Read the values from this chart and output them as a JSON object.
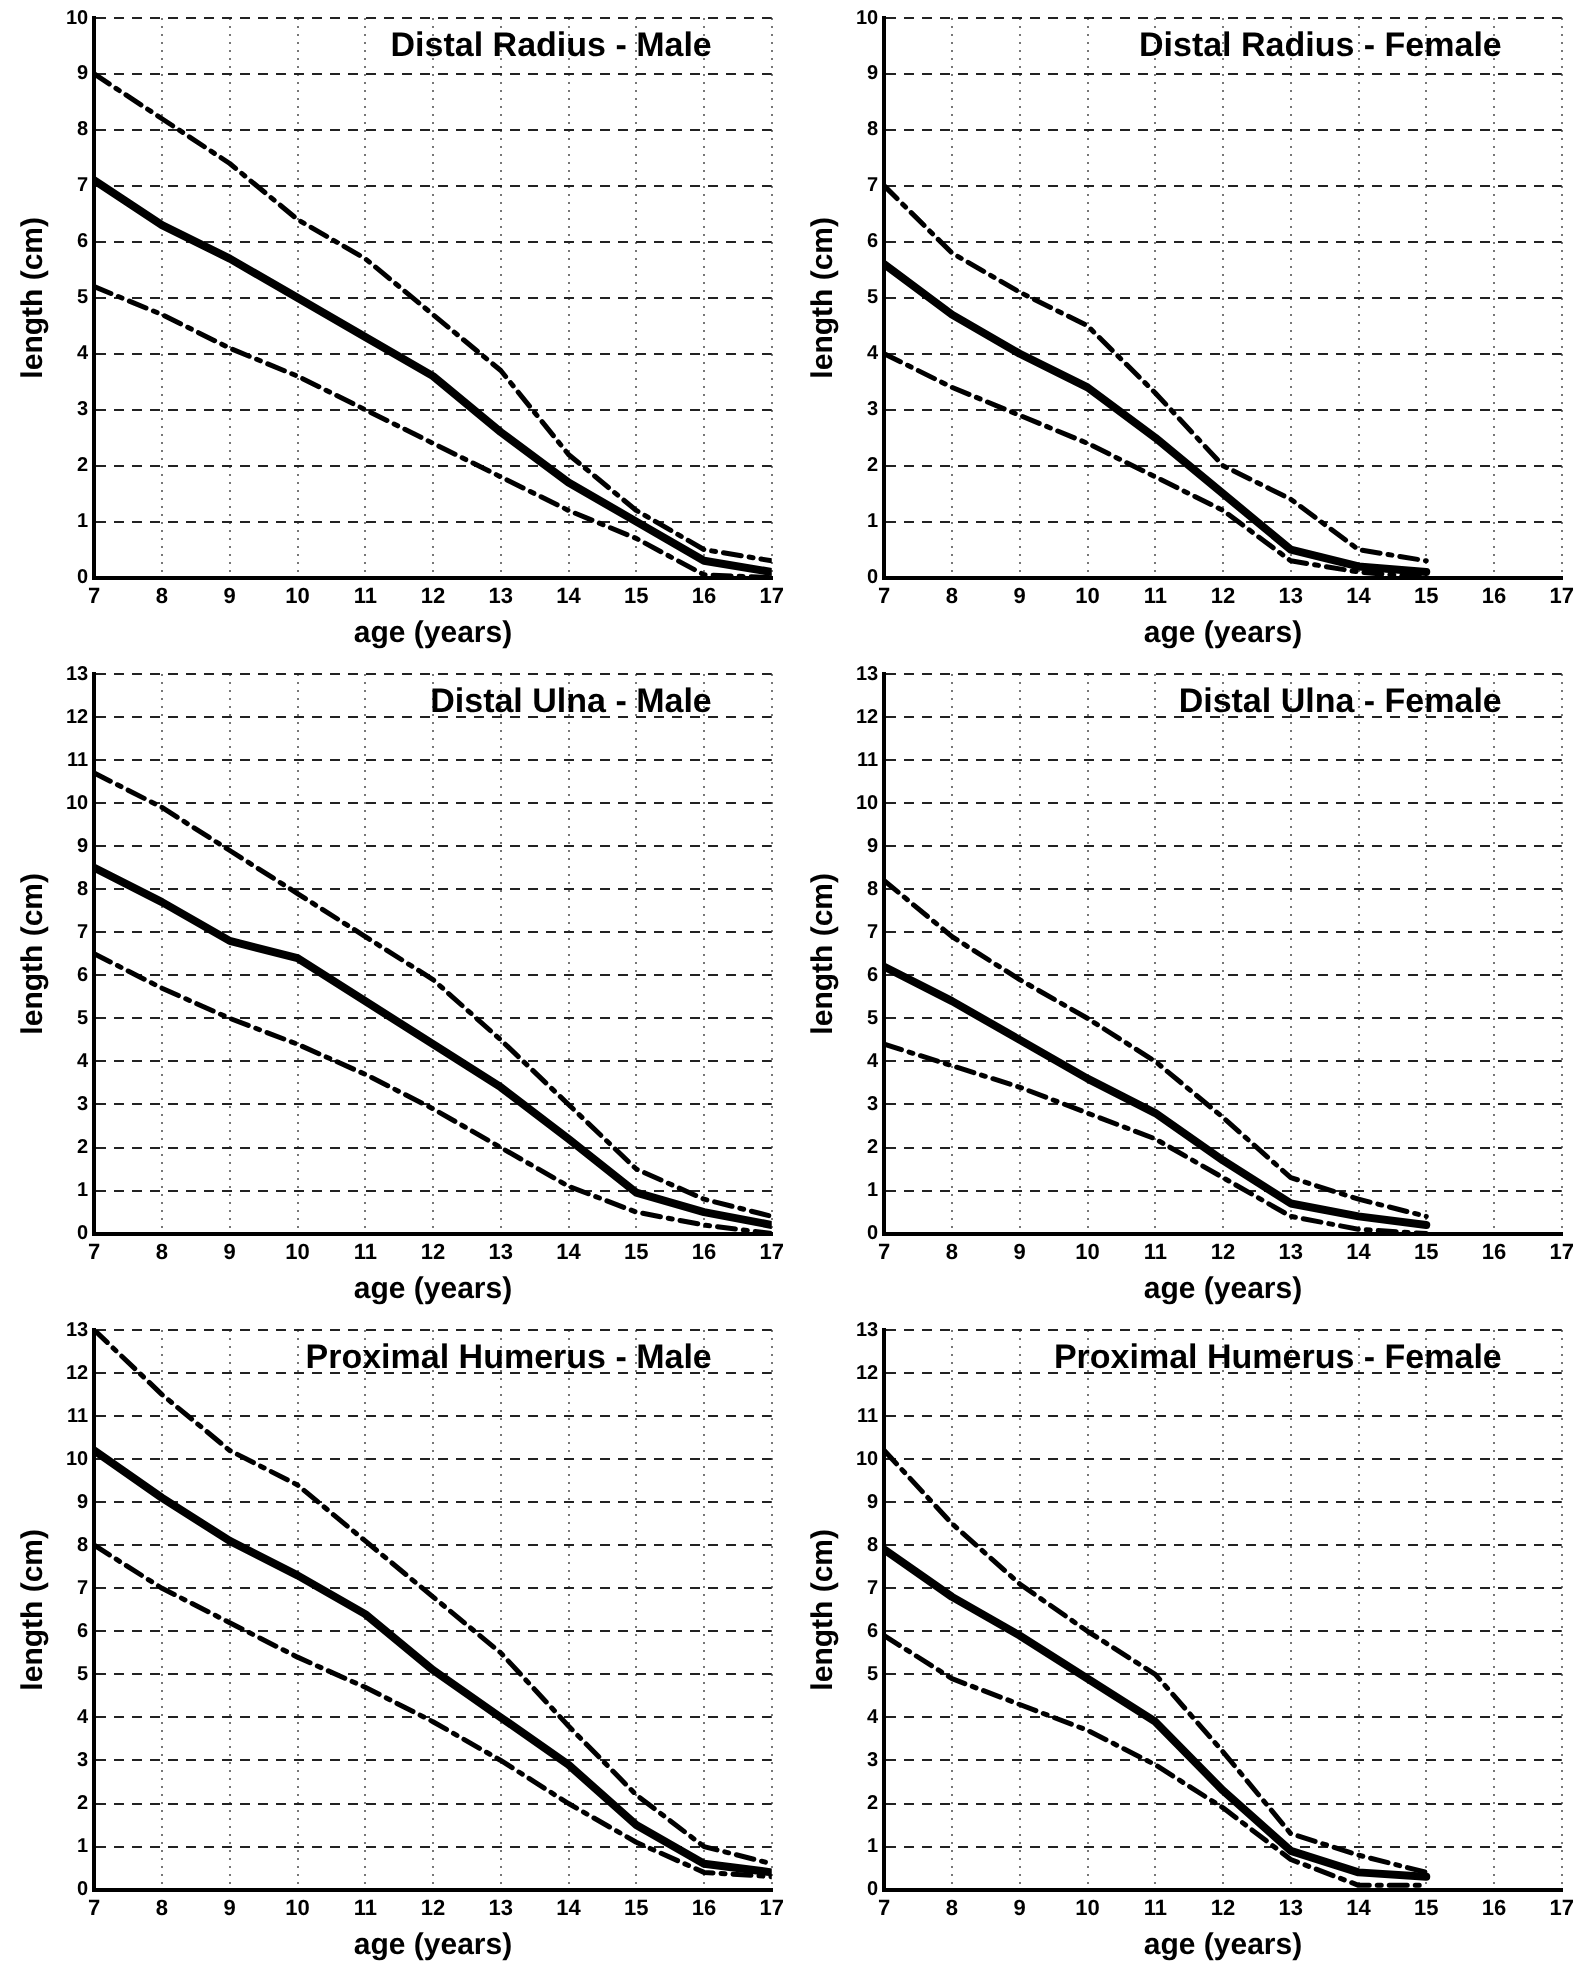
{
  "chart_data": [
    {
      "type": "line",
      "title": "Distal Radius - Male",
      "xlabel": "age (years)",
      "ylabel": "length (cm)",
      "x": [
        7,
        8,
        9,
        10,
        11,
        12,
        13,
        14,
        15,
        16,
        17
      ],
      "xlim": [
        7,
        17
      ],
      "xticks": [
        7,
        8,
        9,
        10,
        11,
        12,
        13,
        14,
        15,
        16,
        17
      ],
      "ylim": [
        0,
        10
      ],
      "yticks": [
        0,
        1,
        2,
        3,
        4,
        5,
        6,
        7,
        8,
        9,
        10
      ],
      "grid": true,
      "series": [
        {
          "color": "#000000",
          "line_style": "dashed",
          "values": [
            9.0,
            8.2,
            7.4,
            6.4,
            5.7,
            4.7,
            3.7,
            2.2,
            1.2,
            0.5,
            0.3
          ]
        },
        {
          "color": "#000000",
          "line_style": "solid",
          "values": [
            7.1,
            6.3,
            5.7,
            5.0,
            4.3,
            3.6,
            2.6,
            1.7,
            1.0,
            0.3,
            0.1
          ]
        },
        {
          "color": "#000000",
          "line_style": "dashed",
          "values": [
            5.2,
            4.7,
            4.1,
            3.6,
            3.0,
            2.4,
            1.8,
            1.2,
            0.7,
            0.05,
            0.0
          ]
        }
      ]
    },
    {
      "type": "line",
      "title": "Distal Radius - Female",
      "xlabel": "age (years)",
      "ylabel": "length (cm)",
      "x": [
        7,
        8,
        9,
        10,
        11,
        12,
        13,
        14,
        15
      ],
      "xlim": [
        7,
        17
      ],
      "xticks": [
        7,
        8,
        9,
        10,
        11,
        12,
        13,
        14,
        15,
        16,
        17
      ],
      "ylim": [
        0,
        10
      ],
      "yticks": [
        0,
        1,
        2,
        3,
        4,
        5,
        6,
        7,
        8,
        9,
        10
      ],
      "grid": true,
      "series": [
        {
          "color": "#000000",
          "line_style": "dashed",
          "values": [
            7.0,
            5.8,
            5.1,
            4.5,
            3.3,
            2.0,
            1.4,
            0.5,
            0.3
          ]
        },
        {
          "color": "#000000",
          "line_style": "solid",
          "values": [
            5.6,
            4.7,
            4.0,
            3.4,
            2.5,
            1.5,
            0.5,
            0.2,
            0.1
          ]
        },
        {
          "color": "#000000",
          "line_style": "dashed",
          "values": [
            4.0,
            3.4,
            2.9,
            2.4,
            1.8,
            1.2,
            0.3,
            0.1,
            0.0
          ]
        }
      ]
    },
    {
      "type": "line",
      "title": "Distal Ulna - Male",
      "xlabel": "age (years)",
      "ylabel": "length (cm)",
      "x": [
        7,
        8,
        9,
        10,
        11,
        12,
        13,
        14,
        15,
        16,
        17
      ],
      "xlim": [
        7,
        17
      ],
      "xticks": [
        7,
        8,
        9,
        10,
        11,
        12,
        13,
        14,
        15,
        16,
        17
      ],
      "ylim": [
        0,
        13
      ],
      "yticks": [
        0,
        1,
        2,
        3,
        4,
        5,
        6,
        7,
        8,
        9,
        10,
        11,
        12,
        13
      ],
      "grid": true,
      "series": [
        {
          "color": "#000000",
          "line_style": "dashed",
          "values": [
            10.7,
            9.9,
            8.9,
            7.9,
            6.9,
            5.9,
            4.5,
            3.0,
            1.5,
            0.8,
            0.4
          ]
        },
        {
          "color": "#000000",
          "line_style": "solid",
          "values": [
            8.5,
            7.7,
            6.8,
            6.4,
            5.4,
            4.4,
            3.4,
            2.2,
            0.95,
            0.5,
            0.2
          ]
        },
        {
          "color": "#000000",
          "line_style": "dashed",
          "values": [
            6.5,
            5.7,
            5.0,
            4.4,
            3.7,
            2.9,
            2.0,
            1.1,
            0.5,
            0.2,
            0.0
          ]
        }
      ]
    },
    {
      "type": "line",
      "title": "Distal Ulna - Female",
      "xlabel": "age (years)",
      "ylabel": "length (cm)",
      "x": [
        7,
        8,
        9,
        10,
        11,
        12,
        13,
        14,
        15
      ],
      "xlim": [
        7,
        17
      ],
      "xticks": [
        7,
        8,
        9,
        10,
        11,
        12,
        13,
        14,
        15,
        16,
        17
      ],
      "ylim": [
        0,
        13
      ],
      "yticks": [
        0,
        1,
        2,
        3,
        4,
        5,
        6,
        7,
        8,
        9,
        10,
        11,
        12,
        13
      ],
      "grid": true,
      "series": [
        {
          "color": "#000000",
          "line_style": "dashed",
          "values": [
            8.2,
            6.9,
            5.9,
            5.0,
            4.0,
            2.7,
            1.3,
            0.8,
            0.4
          ]
        },
        {
          "color": "#000000",
          "line_style": "solid",
          "values": [
            6.2,
            5.4,
            4.5,
            3.6,
            2.8,
            1.7,
            0.7,
            0.4,
            0.2
          ]
        },
        {
          "color": "#000000",
          "line_style": "dashed",
          "values": [
            4.4,
            3.9,
            3.4,
            2.8,
            2.2,
            1.3,
            0.4,
            0.1,
            0.0
          ]
        }
      ]
    },
    {
      "type": "line",
      "title": "Proximal Humerus - Male",
      "xlabel": "age (years)",
      "ylabel": "length (cm)",
      "x": [
        7,
        8,
        9,
        10,
        11,
        12,
        13,
        14,
        15,
        16,
        17
      ],
      "xlim": [
        7,
        17
      ],
      "xticks": [
        7,
        8,
        9,
        10,
        11,
        12,
        13,
        14,
        15,
        16,
        17
      ],
      "ylim": [
        0,
        13
      ],
      "yticks": [
        0,
        1,
        2,
        3,
        4,
        5,
        6,
        7,
        8,
        9,
        10,
        11,
        12,
        13
      ],
      "grid": true,
      "series": [
        {
          "color": "#000000",
          "line_style": "dashed",
          "values": [
            13.0,
            11.5,
            10.2,
            9.4,
            8.1,
            6.8,
            5.5,
            3.8,
            2.2,
            1.0,
            0.6
          ]
        },
        {
          "color": "#000000",
          "line_style": "solid",
          "values": [
            10.2,
            9.1,
            8.1,
            7.3,
            6.4,
            5.1,
            4.0,
            2.9,
            1.5,
            0.6,
            0.4
          ]
        },
        {
          "color": "#000000",
          "line_style": "dashed",
          "values": [
            8.0,
            7.0,
            6.2,
            5.4,
            4.7,
            3.9,
            3.0,
            2.0,
            1.1,
            0.4,
            0.3
          ]
        }
      ]
    },
    {
      "type": "line",
      "title": "Proximal Humerus - Female",
      "xlabel": "age (years)",
      "ylabel": "length (cm)",
      "x": [
        7,
        8,
        9,
        10,
        11,
        12,
        13,
        14,
        15
      ],
      "xlim": [
        7,
        17
      ],
      "xticks": [
        7,
        8,
        9,
        10,
        11,
        12,
        13,
        14,
        15,
        16,
        17
      ],
      "ylim": [
        0,
        13
      ],
      "yticks": [
        0,
        1,
        2,
        3,
        4,
        5,
        6,
        7,
        8,
        9,
        10,
        11,
        12,
        13
      ],
      "grid": true,
      "series": [
        {
          "color": "#000000",
          "line_style": "dashed",
          "values": [
            10.2,
            8.5,
            7.1,
            6.0,
            5.0,
            3.2,
            1.3,
            0.8,
            0.4
          ]
        },
        {
          "color": "#000000",
          "line_style": "solid",
          "values": [
            7.9,
            6.8,
            5.9,
            4.9,
            3.9,
            2.3,
            0.9,
            0.4,
            0.3
          ]
        },
        {
          "color": "#000000",
          "line_style": "dashed",
          "values": [
            5.9,
            4.9,
            4.3,
            3.7,
            2.9,
            1.9,
            0.7,
            0.1,
            0.1
          ]
        }
      ]
    }
  ]
}
